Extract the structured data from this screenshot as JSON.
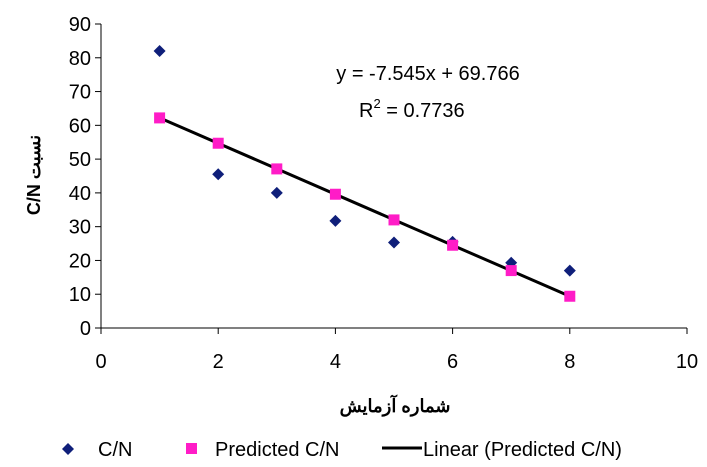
{
  "chart_data": {
    "type": "scatter",
    "xlabel": "شماره آزمایش",
    "ylabel": "نسبت C/N",
    "xlim": [
      0,
      10
    ],
    "ylim": [
      0,
      90
    ],
    "x_ticks": [
      "0",
      "2",
      "4",
      "6",
      "8",
      "10"
    ],
    "y_ticks": [
      "0",
      "10",
      "20",
      "30",
      "40",
      "50",
      "60",
      "70",
      "80",
      "90"
    ],
    "grid": false,
    "legend_position": "bottom",
    "series": [
      {
        "name": "C/N",
        "kind": "scatter",
        "marker": "diamond",
        "color": "#0f1f7a",
        "x": [
          1,
          2,
          3,
          4,
          5,
          6,
          7,
          8
        ],
        "y": [
          82,
          45.5,
          40,
          31.7,
          25.3,
          25.5,
          19.3,
          17
        ]
      },
      {
        "name": "Predicted C/N",
        "kind": "scatter",
        "marker": "square",
        "color": "#ff1cc7",
        "x": [
          1,
          2,
          3,
          4,
          5,
          6,
          7,
          8
        ],
        "y": [
          62.2,
          54.7,
          47.1,
          39.6,
          32.0,
          24.5,
          17.0,
          9.4
        ]
      },
      {
        "name": "Linear (Predicted C/N)",
        "kind": "trendline",
        "color": "#000000",
        "slope": -7.545,
        "intercept": 69.766,
        "x_range": [
          1,
          8
        ]
      }
    ],
    "annotations": {
      "equation": "y = -7.545x + 69.766",
      "r2_prefix": "R",
      "r2_sup": "2",
      "r2_value": " = 0.7736"
    }
  }
}
